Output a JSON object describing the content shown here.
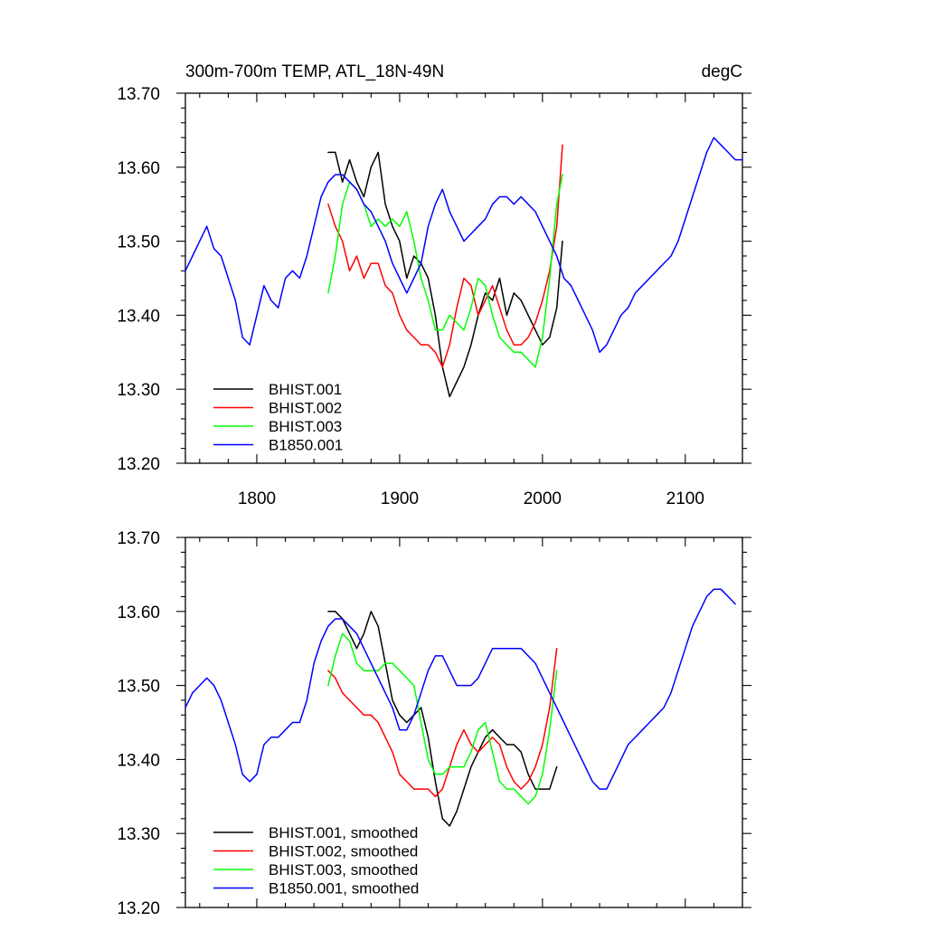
{
  "chart_data": [
    {
      "type": "line",
      "title": "300m-700m TEMP, ATL_18N-49N",
      "units_label": "degC",
      "xlim": [
        1750,
        2140
      ],
      "ylim": [
        13.2,
        13.7
      ],
      "x_ticks": [
        1800,
        1900,
        2000,
        2100
      ],
      "x_tick_labels": [
        "1800",
        "1900",
        "2000",
        "2100"
      ],
      "y_ticks": [
        13.2,
        13.3,
        13.4,
        13.5,
        13.6,
        13.7
      ],
      "y_tick_labels": [
        "13.20",
        "13.30",
        "13.40",
        "13.50",
        "13.60",
        "13.70"
      ],
      "legend_placement": "bottom-left",
      "grid": false,
      "series": [
        {
          "name": "BHIST.001",
          "color": "#000000",
          "x": [
            1850,
            1855,
            1860,
            1865,
            1870,
            1875,
            1880,
            1885,
            1890,
            1895,
            1900,
            1905,
            1910,
            1915,
            1920,
            1925,
            1930,
            1935,
            1940,
            1945,
            1950,
            1955,
            1960,
            1965,
            1970,
            1975,
            1980,
            1985,
            1990,
            1995,
            2000,
            2005,
            2010,
            2014
          ],
          "y": [
            13.62,
            13.62,
            13.58,
            13.61,
            13.58,
            13.56,
            13.6,
            13.62,
            13.55,
            13.52,
            13.5,
            13.45,
            13.48,
            13.47,
            13.45,
            13.4,
            13.33,
            13.29,
            13.31,
            13.33,
            13.36,
            13.4,
            13.43,
            13.42,
            13.45,
            13.4,
            13.43,
            13.42,
            13.4,
            13.38,
            13.36,
            13.37,
            13.41,
            13.5
          ]
        },
        {
          "name": "BHIST.002",
          "color": "#ff0000",
          "x": [
            1850,
            1855,
            1860,
            1865,
            1870,
            1875,
            1880,
            1885,
            1890,
            1895,
            1900,
            1905,
            1910,
            1915,
            1920,
            1925,
            1930,
            1935,
            1940,
            1945,
            1950,
            1955,
            1960,
            1965,
            1970,
            1975,
            1980,
            1985,
            1990,
            1995,
            2000,
            2005,
            2010,
            2014
          ],
          "y": [
            13.55,
            13.52,
            13.5,
            13.46,
            13.48,
            13.45,
            13.47,
            13.47,
            13.44,
            13.43,
            13.4,
            13.38,
            13.37,
            13.36,
            13.36,
            13.35,
            13.33,
            13.36,
            13.41,
            13.45,
            13.44,
            13.4,
            13.42,
            13.44,
            13.41,
            13.38,
            13.36,
            13.36,
            13.37,
            13.39,
            13.42,
            13.46,
            13.52,
            13.63
          ]
        },
        {
          "name": "BHIST.003",
          "color": "#00ff00",
          "x": [
            1850,
            1855,
            1860,
            1865,
            1870,
            1875,
            1880,
            1885,
            1890,
            1895,
            1900,
            1905,
            1910,
            1915,
            1920,
            1925,
            1930,
            1935,
            1940,
            1945,
            1950,
            1955,
            1960,
            1965,
            1970,
            1975,
            1980,
            1985,
            1990,
            1995,
            2000,
            2005,
            2010,
            2014
          ],
          "y": [
            13.43,
            13.48,
            13.55,
            13.58,
            13.57,
            13.55,
            13.52,
            13.53,
            13.52,
            13.53,
            13.52,
            13.54,
            13.5,
            13.45,
            13.42,
            13.38,
            13.38,
            13.4,
            13.39,
            13.38,
            13.41,
            13.45,
            13.44,
            13.4,
            13.37,
            13.36,
            13.35,
            13.35,
            13.34,
            13.33,
            13.37,
            13.45,
            13.55,
            13.59
          ]
        },
        {
          "name": "B1850.001",
          "color": "#0000ff",
          "x": [
            1750,
            1755,
            1760,
            1765,
            1770,
            1775,
            1780,
            1785,
            1790,
            1795,
            1800,
            1805,
            1810,
            1815,
            1820,
            1825,
            1830,
            1835,
            1840,
            1845,
            1850,
            1855,
            1860,
            1865,
            1870,
            1875,
            1880,
            1885,
            1890,
            1895,
            1900,
            1905,
            1910,
            1915,
            1920,
            1925,
            1930,
            1935,
            1940,
            1945,
            1950,
            1955,
            1960,
            1965,
            1970,
            1975,
            1980,
            1985,
            1990,
            1995,
            2000,
            2005,
            2010,
            2015,
            2020,
            2025,
            2030,
            2035,
            2040,
            2045,
            2050,
            2055,
            2060,
            2065,
            2070,
            2075,
            2080,
            2085,
            2090,
            2095,
            2100,
            2105,
            2110,
            2115,
            2120,
            2125,
            2130,
            2135,
            2140
          ],
          "y": [
            13.46,
            13.48,
            13.5,
            13.52,
            13.49,
            13.48,
            13.45,
            13.42,
            13.37,
            13.36,
            13.4,
            13.44,
            13.42,
            13.41,
            13.45,
            13.46,
            13.45,
            13.48,
            13.52,
            13.56,
            13.58,
            13.59,
            13.59,
            13.58,
            13.57,
            13.55,
            13.54,
            13.52,
            13.5,
            13.47,
            13.45,
            13.43,
            13.45,
            13.47,
            13.52,
            13.55,
            13.57,
            13.54,
            13.52,
            13.5,
            13.51,
            13.52,
            13.53,
            13.55,
            13.56,
            13.56,
            13.55,
            13.56,
            13.55,
            13.54,
            13.52,
            13.5,
            13.48,
            13.45,
            13.44,
            13.42,
            13.4,
            13.38,
            13.35,
            13.36,
            13.38,
            13.4,
            13.41,
            13.43,
            13.44,
            13.45,
            13.46,
            13.47,
            13.48,
            13.5,
            13.53,
            13.56,
            13.59,
            13.62,
            13.64,
            13.63,
            13.62,
            13.61,
            13.61
          ]
        }
      ]
    },
    {
      "type": "line",
      "xlim": [
        1750,
        2140
      ],
      "ylim": [
        13.2,
        13.7
      ],
      "x_ticks": [
        1800,
        1900,
        2000,
        2100
      ],
      "y_ticks": [
        13.2,
        13.3,
        13.4,
        13.5,
        13.6,
        13.7
      ],
      "y_tick_labels": [
        "13.20",
        "13.30",
        "13.40",
        "13.50",
        "13.60",
        "13.70"
      ],
      "legend_placement": "bottom-left",
      "grid": false,
      "series": [
        {
          "name": "BHIST.001, smoothed",
          "color": "#000000",
          "x": [
            1850,
            1855,
            1860,
            1865,
            1870,
            1875,
            1880,
            1885,
            1890,
            1895,
            1900,
            1905,
            1910,
            1915,
            1920,
            1925,
            1930,
            1935,
            1940,
            1945,
            1950,
            1955,
            1960,
            1965,
            1970,
            1975,
            1980,
            1985,
            1990,
            1995,
            2000,
            2005,
            2010
          ],
          "y": [
            13.6,
            13.6,
            13.59,
            13.57,
            13.55,
            13.57,
            13.6,
            13.58,
            13.53,
            13.48,
            13.46,
            13.45,
            13.46,
            13.47,
            13.43,
            13.37,
            13.32,
            13.31,
            13.33,
            13.36,
            13.39,
            13.41,
            13.43,
            13.44,
            13.43,
            13.42,
            13.42,
            13.41,
            13.38,
            13.36,
            13.36,
            13.36,
            13.39
          ]
        },
        {
          "name": "BHIST.002, smoothed",
          "color": "#ff0000",
          "x": [
            1850,
            1855,
            1860,
            1865,
            1870,
            1875,
            1880,
            1885,
            1890,
            1895,
            1900,
            1905,
            1910,
            1915,
            1920,
            1925,
            1930,
            1935,
            1940,
            1945,
            1950,
            1955,
            1960,
            1965,
            1970,
            1975,
            1980,
            1985,
            1990,
            1995,
            2000,
            2005,
            2010
          ],
          "y": [
            13.52,
            13.51,
            13.49,
            13.48,
            13.47,
            13.46,
            13.46,
            13.45,
            13.43,
            13.41,
            13.38,
            13.37,
            13.36,
            13.36,
            13.36,
            13.35,
            13.36,
            13.39,
            13.42,
            13.44,
            13.42,
            13.41,
            13.42,
            13.43,
            13.42,
            13.39,
            13.37,
            13.36,
            13.37,
            13.39,
            13.42,
            13.47,
            13.55
          ]
        },
        {
          "name": "BHIST.003, smoothed",
          "color": "#00ff00",
          "x": [
            1850,
            1855,
            1860,
            1865,
            1870,
            1875,
            1880,
            1885,
            1890,
            1895,
            1900,
            1905,
            1910,
            1915,
            1920,
            1925,
            1930,
            1935,
            1940,
            1945,
            1950,
            1955,
            1960,
            1965,
            1970,
            1975,
            1980,
            1985,
            1990,
            1995,
            2000,
            2005,
            2010
          ],
          "y": [
            13.5,
            13.54,
            13.57,
            13.56,
            13.53,
            13.52,
            13.52,
            13.52,
            13.53,
            13.53,
            13.52,
            13.51,
            13.5,
            13.45,
            13.4,
            13.38,
            13.38,
            13.39,
            13.39,
            13.39,
            13.41,
            13.44,
            13.45,
            13.41,
            13.37,
            13.36,
            13.36,
            13.35,
            13.34,
            13.35,
            13.38,
            13.44,
            13.52
          ]
        },
        {
          "name": "B1850.001, smoothed",
          "color": "#0000ff",
          "x": [
            1750,
            1755,
            1760,
            1765,
            1770,
            1775,
            1780,
            1785,
            1790,
            1795,
            1800,
            1805,
            1810,
            1815,
            1820,
            1825,
            1830,
            1835,
            1840,
            1845,
            1850,
            1855,
            1860,
            1865,
            1870,
            1875,
            1880,
            1885,
            1890,
            1895,
            1900,
            1905,
            1910,
            1915,
            1920,
            1925,
            1930,
            1935,
            1940,
            1945,
            1950,
            1955,
            1960,
            1965,
            1970,
            1975,
            1980,
            1985,
            1990,
            1995,
            2000,
            2005,
            2010,
            2015,
            2020,
            2025,
            2030,
            2035,
            2040,
            2045,
            2050,
            2055,
            2060,
            2065,
            2070,
            2075,
            2080,
            2085,
            2090,
            2095,
            2100,
            2105,
            2110,
            2115,
            2120,
            2125,
            2130,
            2135
          ],
          "y": [
            13.47,
            13.49,
            13.5,
            13.51,
            13.5,
            13.48,
            13.45,
            13.42,
            13.38,
            13.37,
            13.38,
            13.42,
            13.43,
            13.43,
            13.44,
            13.45,
            13.45,
            13.48,
            13.53,
            13.56,
            13.58,
            13.59,
            13.59,
            13.58,
            13.57,
            13.55,
            13.53,
            13.51,
            13.49,
            13.47,
            13.44,
            13.44,
            13.46,
            13.49,
            13.52,
            13.54,
            13.54,
            13.52,
            13.5,
            13.5,
            13.5,
            13.51,
            13.53,
            13.55,
            13.55,
            13.55,
            13.55,
            13.55,
            13.54,
            13.53,
            13.51,
            13.49,
            13.47,
            13.45,
            13.43,
            13.41,
            13.39,
            13.37,
            13.36,
            13.36,
            13.38,
            13.4,
            13.42,
            13.43,
            13.44,
            13.45,
            13.46,
            13.47,
            13.49,
            13.52,
            13.55,
            13.58,
            13.6,
            13.62,
            13.63,
            13.63,
            13.62,
            13.61
          ]
        }
      ]
    }
  ]
}
